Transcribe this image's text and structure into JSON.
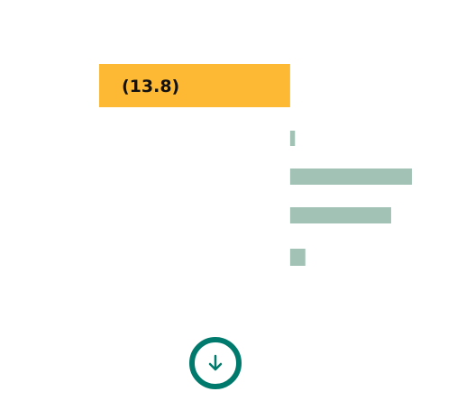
{
  "chart_data": {
    "type": "bar",
    "orientation": "horizontal",
    "baseline": 0,
    "xlim": [
      -13.8,
      8.8
    ],
    "grid": false,
    "values": [
      -13.8,
      0.35,
      8.8,
      7.3,
      1.1
    ],
    "labels": [
      "(13.8)",
      "",
      "",
      "",
      ""
    ],
    "bar_colors": [
      "#fdb933",
      "#a3c2b6",
      "#a3c2b6",
      "#a3c2b6",
      "#a3c2b6"
    ]
  },
  "controls": {
    "download_icon": "arrow-down-circle-icon",
    "accent_color": "#007a6c"
  }
}
